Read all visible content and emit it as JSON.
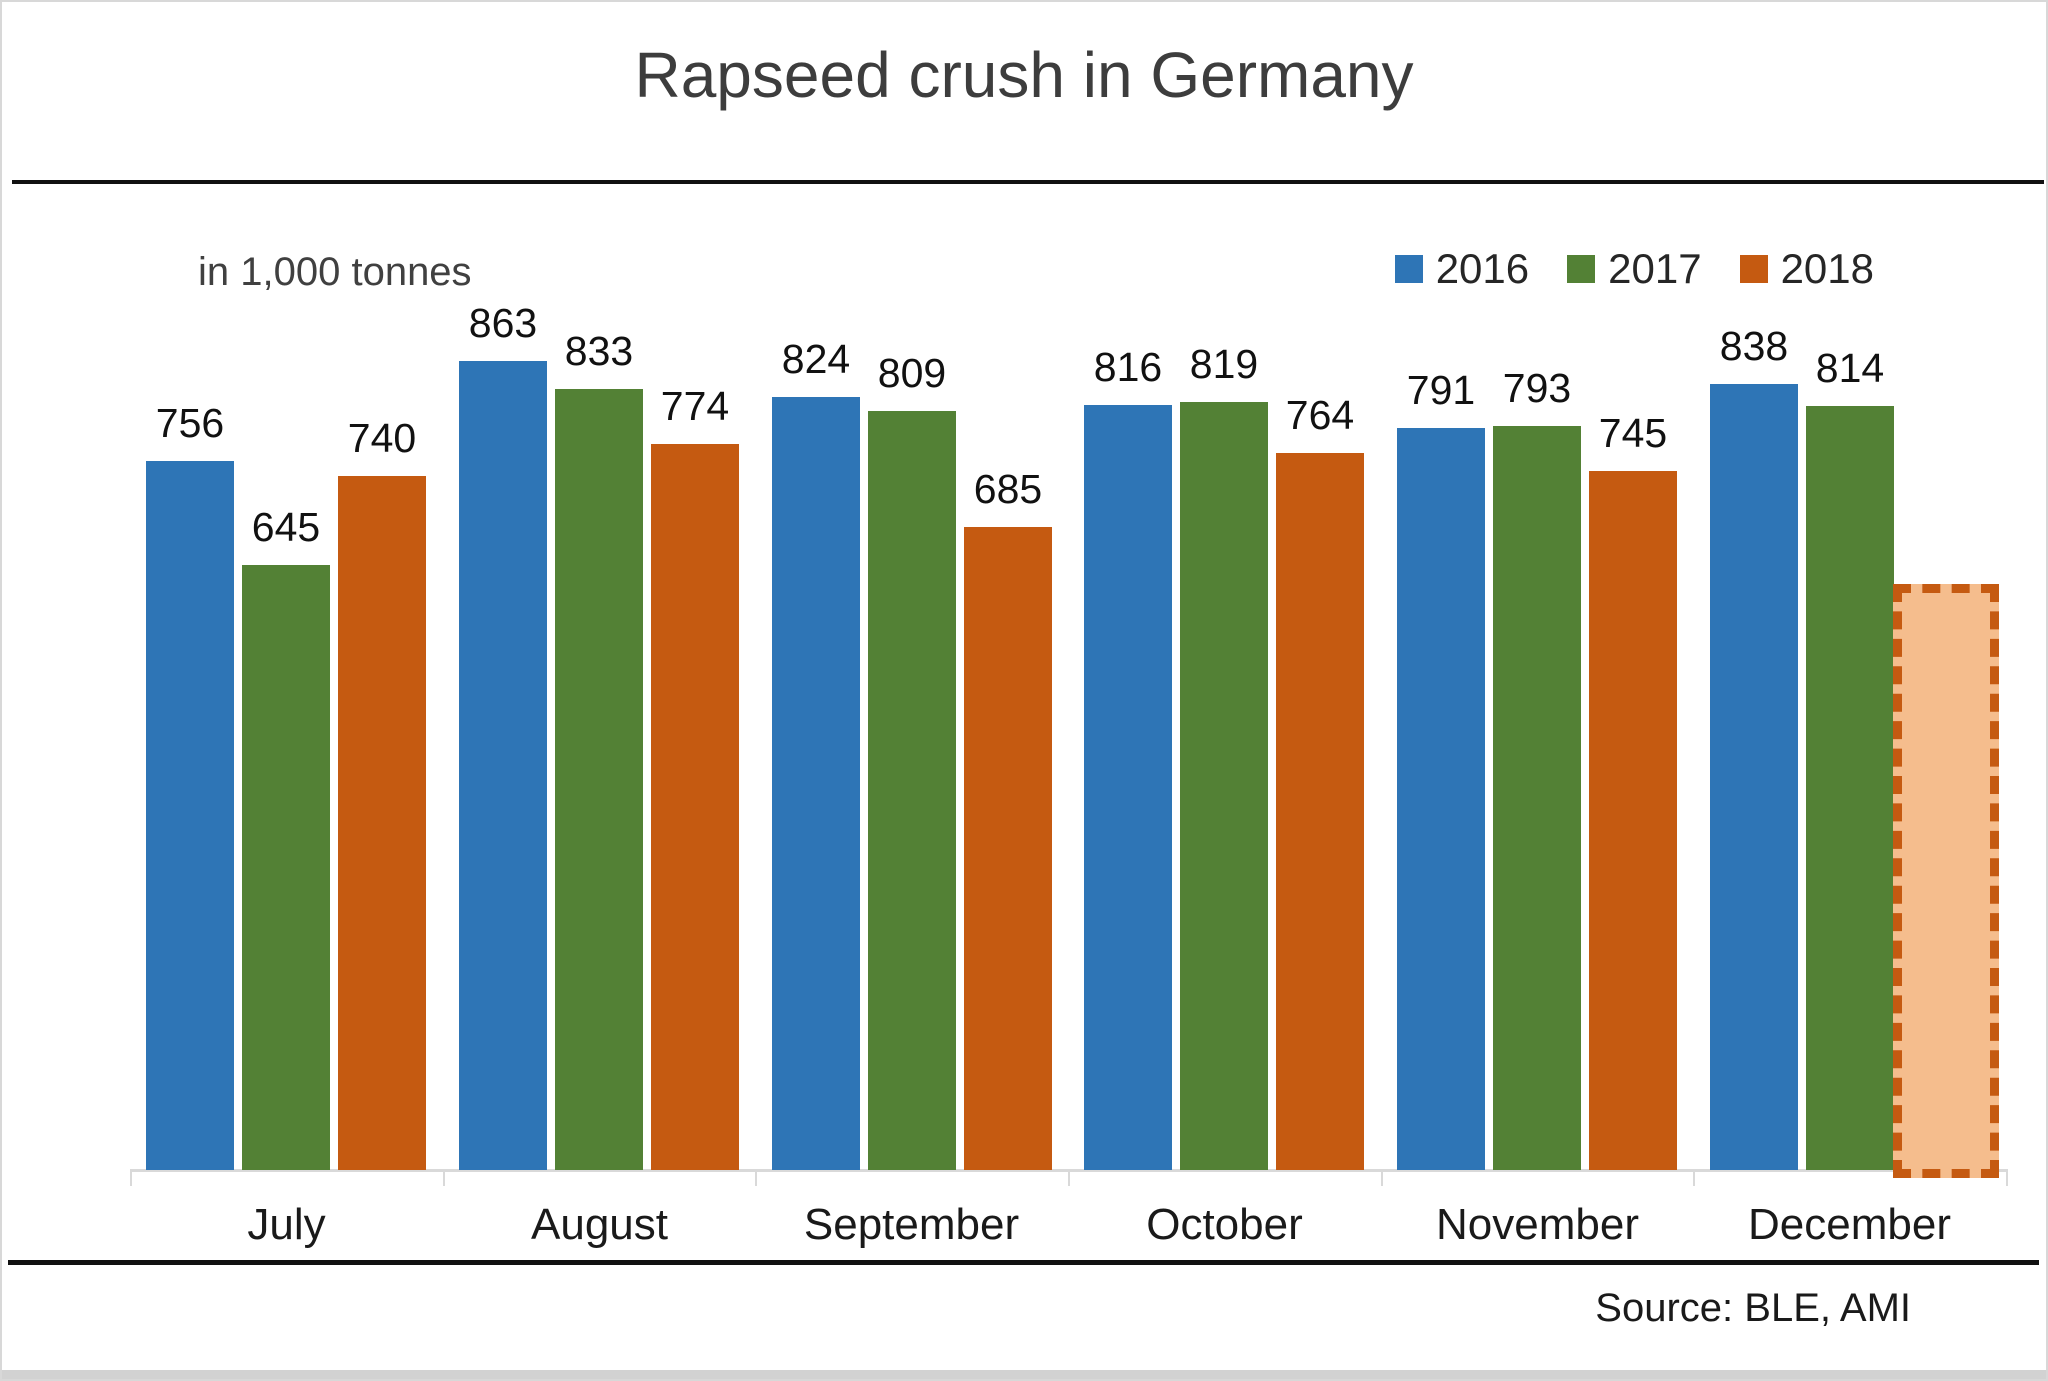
{
  "title": "Rapseed crush in Germany",
  "axis_note": "in 1,000 tonnes",
  "source": "Source: BLE, AMI",
  "colors": {
    "blue_2016": "#2E75B6",
    "green_2017": "#538135",
    "orange_2018": "#C55A11",
    "placeholder_fill": "#F5BD8D",
    "placeholder_border": "#C55A11",
    "axis_line": "#D9D9D9",
    "divider": "#111111",
    "text": "#262626"
  },
  "legend": {
    "items": [
      {
        "label": "2016",
        "color_key": "blue_2016"
      },
      {
        "label": "2017",
        "color_key": "green_2017"
      },
      {
        "label": "2018",
        "color_key": "orange_2018"
      }
    ]
  },
  "chart_data": {
    "type": "bar",
    "title": "Rapseed crush in Germany",
    "unit_note": "in 1,000 tonnes",
    "categories": [
      "July",
      "August",
      "September",
      "October",
      "November",
      "December"
    ],
    "series": [
      {
        "name": "2016",
        "color_key": "blue_2016",
        "values": [
          756,
          863,
          824,
          816,
          791,
          838
        ]
      },
      {
        "name": "2017",
        "color_key": "green_2017",
        "values": [
          645,
          833,
          809,
          819,
          793,
          814
        ]
      },
      {
        "name": "2018",
        "color_key": "orange_2018",
        "values": [
          740,
          774,
          685,
          764,
          745,
          null
        ]
      }
    ],
    "placeholder": {
      "series": "2018",
      "category": "December",
      "style": "dashed-outline-no-label",
      "approx_height_value": 625
    },
    "ylim": [
      0,
      920
    ],
    "grid": false,
    "data_labels": true,
    "legend_position": "top-right",
    "xlabel": "",
    "ylabel": ""
  }
}
